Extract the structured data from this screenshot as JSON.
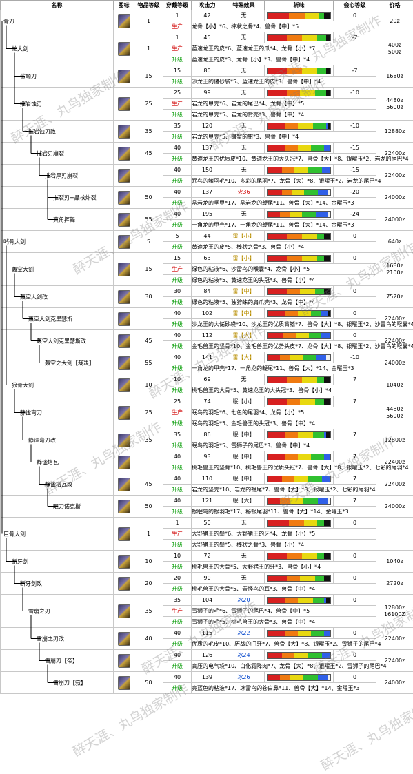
{
  "headers": {
    "name": "名称",
    "icon": "图标",
    "level": "物品等级",
    "equip": "穿戴等级",
    "attack": "攻击力",
    "special": "特殊效果",
    "sharpness": "斩味",
    "affinity": "会心等级",
    "price": "价格"
  },
  "watermark": "醉天涯、丸鸟独家制作",
  "sharp_colors": [
    "#d82020",
    "#f07a10",
    "#e8d810",
    "#30c030",
    "#3060e8",
    "#f0f0f0"
  ],
  "weapons": [
    {
      "name": "骨刀",
      "depth": 0,
      "level": "1",
      "equip": "1",
      "attack": "42",
      "special": "无",
      "special_type": "none",
      "affinity": "0",
      "price": "20z",
      "sharp": [
        20,
        15,
        12,
        5,
        0,
        0
      ],
      "materials": [
        {
          "label": "生产",
          "type": "make",
          "text": "龙骨【小】*6、棒状之骨*4、兽骨【中】*5"
        }
      ]
    },
    {
      "name": "蛇大剑",
      "depth": 1,
      "level": "1",
      "equip": "1",
      "attack": "45",
      "special": "无",
      "special_type": "none",
      "affinity": "-7",
      "price": "400z\n500z",
      "sharp": [
        18,
        14,
        14,
        8,
        0,
        0
      ],
      "materials": [
        {
          "label": "生产",
          "type": "make",
          "text": "蓝速龙王的皮*6、蓝速龙王的爪*4、龙骨【小】*7"
        },
        {
          "label": "升级",
          "type": "up",
          "text": "蓝速龙王的皮*3、龙骨【小】*3、兽骨【中】*4"
        }
      ]
    },
    {
      "name": "鲨颚刀",
      "depth": 2,
      "level": "15",
      "equip": "15",
      "attack": "80",
      "special": "无",
      "special_type": "none",
      "affinity": "-7",
      "price": "1680z",
      "sharp": [
        18,
        14,
        14,
        8,
        0,
        0
      ],
      "materials": [
        {
          "label": "升级",
          "type": "up",
          "text": "沙龙王的储砂袋*5、蓝速龙王的皮*3、兽骨【中】*4"
        }
      ]
    },
    {
      "name": "摧岩蚀刃",
      "depth": 2,
      "level": "25",
      "equip": "25",
      "attack": "99",
      "special": "无",
      "special_type": "none",
      "affinity": "-10",
      "price": "4480z\n5600z",
      "sharp": [
        18,
        12,
        14,
        10,
        0,
        0
      ],
      "materials": [
        {
          "label": "生产",
          "type": "make",
          "text": "岩龙的甲壳*6、岩龙的尾巴*4、龙骨【中】*5"
        },
        {
          "label": "升级",
          "type": "up",
          "text": "岩龙的甲壳*5、岩龙的背壳*3、兽骨【中】*4"
        }
      ]
    },
    {
      "name": "摧岩蚀刃改",
      "depth": 3,
      "level": "35",
      "equip": "35",
      "attack": "120",
      "special": "无",
      "special_type": "none",
      "affinity": "-10",
      "price": "12880z",
      "sharp": [
        16,
        12,
        14,
        12,
        2,
        0
      ],
      "materials": [
        {
          "label": "升级",
          "type": "up",
          "text": "岩龙的甲壳*5、镰蟹的钳*3、兽骨【中】*4"
        }
      ]
    },
    {
      "name": "摧岩刃崩裂",
      "depth": 4,
      "level": "45",
      "equip": "40",
      "attack": "137",
      "special": "无",
      "special_type": "none",
      "affinity": "-15",
      "price": "22400z",
      "sharp": [
        16,
        12,
        12,
        12,
        6,
        0
      ],
      "materials": [
        {
          "label": "升级",
          "type": "up",
          "text": "黄速龙王的优质皮*10、黄速龙王的大头冠*7、兽骨【大】*8、银曜玉*2、岩龙的尾巴*4"
        }
      ]
    },
    {
      "name": "摧岩厚刃崩裂",
      "depth": 5,
      "level": "",
      "equip": "40",
      "attack": "150",
      "special": "无",
      "special_type": "none",
      "affinity": "-15",
      "price": "22400z",
      "sharp": [
        14,
        12,
        12,
        14,
        8,
        0
      ],
      "materials": [
        {
          "label": "升级",
          "type": "up",
          "text": "眠鸟的鳍羽毛*10、多彩的尾羽*7、龙骨【大】*8、银曜玉*2、岩龙的尾巴*4"
        }
      ]
    },
    {
      "name": "摧裂刃=晶核炸裂",
      "depth": 6,
      "level": "50",
      "equip": "40",
      "attack": "137",
      "special": "火36",
      "special_type": "fire",
      "affinity": "-20",
      "price": "24000z",
      "sharp": [
        14,
        10,
        12,
        14,
        10,
        2
      ],
      "materials": [
        {
          "label": "升级",
          "type": "up",
          "text": "晶岩龙的坚甲*17、晶岩龙的鞭尾*11、兽骨【大】*14、金曜玉*3"
        }
      ]
    },
    {
      "name": "真角挥舞",
      "depth": 6,
      "level": "55",
      "equip": "40",
      "attack": "195",
      "special": "无",
      "special_type": "none",
      "affinity": "-24",
      "price": "24000z",
      "sharp": [
        12,
        10,
        12,
        14,
        12,
        2
      ],
      "materials": [
        {
          "label": "升级",
          "type": "up",
          "text": "一角龙的甲壳*17、一角龙的鞭尾*11、兽骨【大】*14、金曜玉*3"
        }
      ]
    },
    {
      "name": "哨骨大剑",
      "depth": 0,
      "level": "5",
      "equip": "5",
      "attack": "44",
      "special": "雷【小】",
      "special_type": "thunder",
      "affinity": "0",
      "price": "640z",
      "sharp": [
        18,
        14,
        14,
        6,
        0,
        0
      ],
      "materials": [
        {
          "label": "升级",
          "type": "up",
          "text": "黄速龙王的皮*5、棒状之骨*3、兽骨【小】*4"
        }
      ]
    },
    {
      "name": "轰空大剑",
      "depth": 1,
      "level": "15",
      "equip": "15",
      "attack": "63",
      "special": "雷【小】",
      "special_type": "thunder",
      "affinity": "0",
      "price": "1680z\n2100z",
      "sharp": [
        18,
        14,
        14,
        6,
        0,
        0
      ],
      "materials": [
        {
          "label": "生产",
          "type": "make",
          "text": "绿色的粘液*6、沙雷鸟的喉囊*4、龙骨【小】*5"
        },
        {
          "label": "升级",
          "type": "up",
          "text": "绿色的粘液*5、黄速龙王的头冠*3、兽骨【小】*4"
        }
      ]
    },
    {
      "name": "轰空大剑改",
      "depth": 2,
      "level": "30",
      "equip": "30",
      "attack": "84",
      "special": "雷【中】",
      "special_type": "thunder",
      "affinity": "0",
      "price": "7520z",
      "sharp": [
        18,
        12,
        14,
        8,
        0,
        0
      ],
      "materials": [
        {
          "label": "升级",
          "type": "up",
          "text": "绿色的粘液*5、独狩蛛的肩爪壳*3、龙骨【中】*4"
        }
      ]
    },
    {
      "name": "轰空大剑克里瑟斯",
      "depth": 3,
      "level": "",
      "equip": "40",
      "attack": "102",
      "special": "雷【中】",
      "special_type": "thunder",
      "affinity": "0",
      "price": "22400z",
      "sharp": [
        16,
        12,
        12,
        10,
        6,
        0
      ],
      "materials": [
        {
          "label": "升级",
          "type": "up",
          "text": "沙龙王的大储砂袋*10、沙龙王的优质背鳍*7、兽骨【大】*8、银曜玉*2、沙雷鸟的喉囊*4"
        }
      ]
    },
    {
      "name": "轰空大剑克里瑟斯改",
      "depth": 4,
      "level": "45",
      "equip": "40",
      "attack": "112",
      "special": "雷【大】",
      "special_type": "thunder",
      "affinity": "0",
      "price": "22400z",
      "sharp": [
        14,
        12,
        12,
        12,
        8,
        0
      ],
      "materials": [
        {
          "label": "升级",
          "type": "up",
          "text": "金毛兽王的坚骨*10、金毛兽王的优势头皮*7、龙骨【大】*8、银曜玉*2、沙雷鸟的喉囊*4"
        }
      ]
    },
    {
      "name": "轰空之大剑【裁决】",
      "depth": 5,
      "level": "55",
      "equip": "40",
      "attack": "141",
      "special": "雷【大】",
      "special_type": "thunder",
      "affinity": "-10",
      "price": "24000z",
      "sharp": [
        12,
        10,
        12,
        12,
        10,
        4
      ],
      "materials": [
        {
          "label": "升级",
          "type": "up",
          "text": "一角龙的甲壳*17、一角龙的鞭尾*11、兽骨【大】*14、金曜玉*3"
        }
      ]
    },
    {
      "name": "狼骨大剑",
      "depth": 1,
      "level": "10",
      "equip": "10",
      "attack": "69",
      "special": "无",
      "special_type": "none",
      "affinity": "7",
      "price": "1040z",
      "sharp": [
        18,
        14,
        14,
        6,
        0,
        0
      ],
      "materials": [
        {
          "label": "升级",
          "type": "up",
          "text": "桃毛兽王的大骨*5、黄速龙王的大头冠*3、兽骨【小】*4"
        }
      ]
    },
    {
      "name": "静谧弯刀",
      "depth": 2,
      "level": "25",
      "equip": "25",
      "attack": "74",
      "special": "眠【小】",
      "special_type": "sleep",
      "affinity": "7",
      "price": "4480z\n5600z",
      "sharp": [
        18,
        12,
        14,
        8,
        0,
        0
      ],
      "materials": [
        {
          "label": "生产",
          "type": "make",
          "text": "眠鸟的羽毛*6、七色的尾羽*4、龙骨【小】*5"
        },
        {
          "label": "升级",
          "type": "up",
          "text": "眠鸟的羽毛*5、金毛兽王的头冠*3、兽骨【中】*4"
        }
      ]
    },
    {
      "name": "静谧弯刀改",
      "depth": 3,
      "level": "35",
      "equip": "35",
      "attack": "86",
      "special": "眠【中】",
      "special_type": "sleep",
      "affinity": "7",
      "price": "12800z",
      "sharp": [
        16,
        12,
        14,
        10,
        2,
        0
      ],
      "materials": [
        {
          "label": "升级",
          "type": "up",
          "text": "眠鸟的羽毛*5、雪狮子的尾巴*3、兽骨【中】*4"
        }
      ]
    },
    {
      "name": "静谧塔瓦",
      "depth": 4,
      "level": "",
      "equip": "40",
      "attack": "93",
      "special": "眠【中】",
      "special_type": "sleep",
      "affinity": "7",
      "price": "22400z",
      "sharp": [
        16,
        12,
        12,
        12,
        6,
        0
      ],
      "materials": [
        {
          "label": "升级",
          "type": "up",
          "text": "桃毛兽王的坚骨*10、桃毛兽王的优质头冠*7、兽骨【大】*8、银曜玉*2、七彩的尾羽*4"
        }
      ]
    },
    {
      "name": "静谧塔瓦改",
      "depth": 5,
      "level": "45",
      "equip": "40",
      "attack": "110",
      "special": "眠【中】",
      "special_type": "sleep",
      "affinity": "7",
      "price": "22400z",
      "sharp": [
        14,
        12,
        12,
        14,
        8,
        0
      ],
      "materials": [
        {
          "label": "升级",
          "type": "up",
          "text": "岩龙的坚壳*10、岩龙的鞭尾*7、兽骨【大】*8、银曜玉*2、七彩的尾羽*4"
        }
      ]
    },
    {
      "name": "眠刀诺克斯",
      "depth": 6,
      "level": "50",
      "equip": "40",
      "attack": "121",
      "special": "眠【大】",
      "special_type": "sleep",
      "affinity": "7",
      "price": "24000z",
      "sharp": [
        12,
        10,
        12,
        14,
        10,
        2
      ],
      "materials": [
        {
          "label": "升级",
          "type": "up",
          "text": "银眠鸟的银羽毛*17、秘银尾羽*11、兽骨【大】*14、金曜玉*3"
        }
      ]
    },
    {
      "name": "巨骨大剑",
      "depth": 0,
      "level": "1",
      "equip": "1",
      "attack": "50",
      "special": "无",
      "special_type": "none",
      "affinity": "0",
      "price": "",
      "sharp": [
        20,
        14,
        12,
        6,
        0,
        0
      ],
      "materials": [
        {
          "label": "生产",
          "type": "make",
          "text": "大野猪王的鬃*6、大野猪王的牙*4、龙骨【小】*5"
        },
        {
          "label": "升级",
          "type": "up",
          "text": "大野猪王的鬃*5、棒状之骨*3、兽骨【小】*4"
        }
      ]
    },
    {
      "name": "断牙剑",
      "depth": 1,
      "level": "10",
      "equip": "10",
      "attack": "72",
      "special": "无",
      "special_type": "none",
      "affinity": "0",
      "price": "1040z",
      "sharp": [
        18,
        14,
        14,
        6,
        0,
        0
      ],
      "materials": [
        {
          "label": "升级",
          "type": "up",
          "text": "桃毛兽王的大骨*5、大野猪王的牙*3、兽骨【小】*4"
        }
      ]
    },
    {
      "name": "断牙剑改",
      "depth": 2,
      "level": "20",
      "equip": "20",
      "attack": "90",
      "special": "无",
      "special_type": "none",
      "affinity": "0",
      "price": "2720z",
      "sharp": [
        18,
        12,
        14,
        8,
        0,
        0
      ],
      "materials": [
        {
          "label": "升级",
          "type": "up",
          "text": "桃毛兽王的大骨*5、青怪鸟的耳*3、兽骨【中】*4"
        }
      ]
    },
    {
      "name": "雪崩之刃",
      "depth": 3,
      "level": "35",
      "equip": "35",
      "attack": "104",
      "special": "冰20",
      "special_type": "ice",
      "affinity": "0",
      "price": "12800z\n16100Z",
      "sharp": [
        16,
        12,
        14,
        10,
        2,
        0
      ],
      "materials": [
        {
          "label": "生产",
          "type": "make",
          "text": "雪狮子的毛*6、雪狮子的尾巴*4、兽骨【中】*5"
        },
        {
          "label": "升级",
          "type": "up",
          "text": "雪狮子的毛*5、桃毛兽王的大骨*3、兽骨【中】*4"
        }
      ]
    },
    {
      "name": "雪崩之刃改",
      "depth": 4,
      "level": "40",
      "equip": "40",
      "attack": "115",
      "special": "冰22",
      "special_type": "ice",
      "affinity": "0",
      "price": "22400z",
      "sharp": [
        16,
        12,
        12,
        12,
        6,
        0
      ],
      "materials": [
        {
          "label": "升级",
          "type": "up",
          "text": "优质的毛皮*10、历战的门牙*7、兽骨【大】*8、银曜玉*2、雪狮子的尾巴*4"
        }
      ]
    },
    {
      "name": "雪崩刀【帝】",
      "depth": 5,
      "level": "",
      "equip": "40",
      "attack": "126",
      "special": "冰24",
      "special_type": "ice",
      "affinity": "0",
      "price": "22400z",
      "sharp": [
        14,
        12,
        12,
        14,
        8,
        0
      ],
      "materials": [
        {
          "label": "升级",
          "type": "up",
          "text": "高压的电气袋*10、白化霜降肉*7、龙骨【大】*8、银曜玉*2、雪狮子的尾巴*4"
        }
      ]
    },
    {
      "name": "雪崩刀【寂】",
      "depth": 6,
      "level": "50",
      "equip": "40",
      "attack": "139",
      "special": "冰26",
      "special_type": "ice",
      "affinity": "0",
      "price": "24000z",
      "sharp": [
        12,
        10,
        12,
        14,
        10,
        2
      ],
      "materials": [
        {
          "label": "升级",
          "type": "up",
          "text": "亮蓝色的粘液*17、冰雷鸟的苍白鼻*11、兽骨【大】*14、金曜玉*3"
        }
      ]
    }
  ]
}
